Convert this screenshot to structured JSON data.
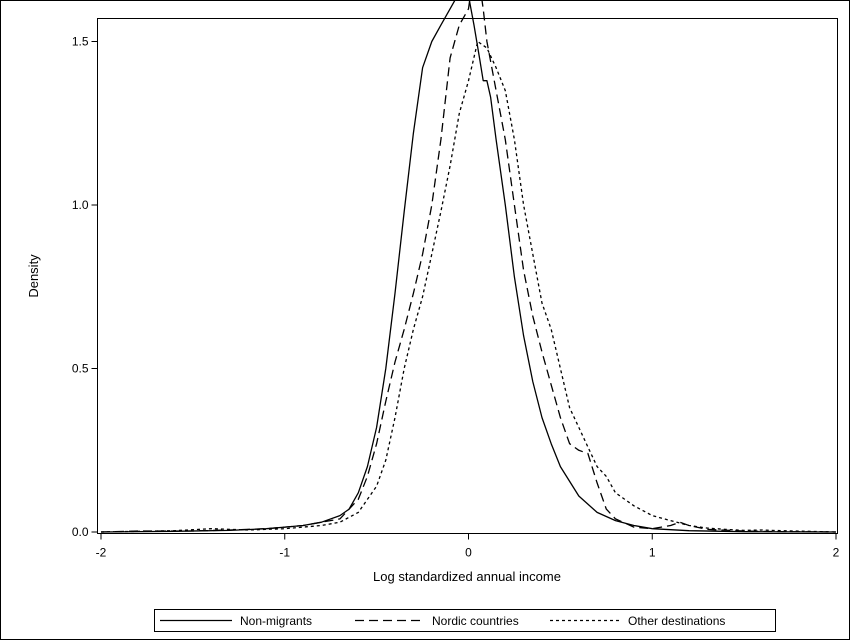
{
  "chart_data": {
    "type": "line",
    "title": "",
    "xlabel": "Log standardized annual income",
    "ylabel": "Density",
    "xlim": [
      -2,
      2
    ],
    "ylim": [
      0,
      1.7
    ],
    "x_ticks": [
      -2,
      -1,
      0,
      1,
      2
    ],
    "x_tick_labels": [
      "-2",
      "-1",
      "0",
      "1",
      "2"
    ],
    "y_ticks": [
      0,
      0.5,
      1.0,
      1.5
    ],
    "y_tick_labels": [
      "0.0",
      "0.5",
      "1.0",
      "1.5"
    ],
    "grid": false,
    "legend_position": "bottom",
    "series": [
      {
        "name": "Non-migrants",
        "style": "solid",
        "points": [
          [
            -2.0,
            0.0
          ],
          [
            -1.6,
            0.002
          ],
          [
            -1.3,
            0.005
          ],
          [
            -1.1,
            0.01
          ],
          [
            -1.0,
            0.015
          ],
          [
            -0.9,
            0.02
          ],
          [
            -0.8,
            0.03
          ],
          [
            -0.7,
            0.05
          ],
          [
            -0.65,
            0.07
          ],
          [
            -0.6,
            0.12
          ],
          [
            -0.55,
            0.2
          ],
          [
            -0.5,
            0.32
          ],
          [
            -0.45,
            0.5
          ],
          [
            -0.4,
            0.73
          ],
          [
            -0.35,
            0.98
          ],
          [
            -0.3,
            1.22
          ],
          [
            -0.25,
            1.42
          ],
          [
            -0.2,
            1.5
          ],
          [
            -0.15,
            1.55
          ],
          [
            -0.1,
            1.6
          ],
          [
            -0.05,
            1.65
          ],
          [
            -0.02,
            1.67
          ],
          [
            0.0,
            1.64
          ],
          [
            0.03,
            1.55
          ],
          [
            0.06,
            1.45
          ],
          [
            0.08,
            1.38
          ],
          [
            0.1,
            1.38
          ],
          [
            0.12,
            1.33
          ],
          [
            0.15,
            1.2
          ],
          [
            0.2,
            1.0
          ],
          [
            0.25,
            0.78
          ],
          [
            0.3,
            0.6
          ],
          [
            0.35,
            0.46
          ],
          [
            0.4,
            0.35
          ],
          [
            0.45,
            0.27
          ],
          [
            0.5,
            0.2
          ],
          [
            0.6,
            0.11
          ],
          [
            0.7,
            0.06
          ],
          [
            0.8,
            0.035
          ],
          [
            0.9,
            0.02
          ],
          [
            1.0,
            0.01
          ],
          [
            1.2,
            0.004
          ],
          [
            1.5,
            0.001
          ],
          [
            2.0,
            0.0
          ]
        ]
      },
      {
        "name": "Nordic countries",
        "style": "dashed",
        "points": [
          [
            -2.0,
            0.0
          ],
          [
            -1.8,
            0.003
          ],
          [
            -1.5,
            0.003
          ],
          [
            -1.3,
            0.006
          ],
          [
            -1.1,
            0.01
          ],
          [
            -1.0,
            0.015
          ],
          [
            -0.9,
            0.02
          ],
          [
            -0.8,
            0.03
          ],
          [
            -0.7,
            0.04
          ],
          [
            -0.6,
            0.1
          ],
          [
            -0.55,
            0.17
          ],
          [
            -0.5,
            0.27
          ],
          [
            -0.45,
            0.4
          ],
          [
            -0.4,
            0.52
          ],
          [
            -0.35,
            0.62
          ],
          [
            -0.3,
            0.73
          ],
          [
            -0.25,
            0.85
          ],
          [
            -0.2,
            1.0
          ],
          [
            -0.15,
            1.2
          ],
          [
            -0.1,
            1.45
          ],
          [
            -0.05,
            1.55
          ],
          [
            0.0,
            1.6
          ],
          [
            0.02,
            1.68
          ],
          [
            0.04,
            1.72
          ],
          [
            0.06,
            1.68
          ],
          [
            0.08,
            1.6
          ],
          [
            0.1,
            1.5
          ],
          [
            0.15,
            1.35
          ],
          [
            0.2,
            1.2
          ],
          [
            0.25,
            1.0
          ],
          [
            0.3,
            0.8
          ],
          [
            0.35,
            0.66
          ],
          [
            0.4,
            0.55
          ],
          [
            0.45,
            0.45
          ],
          [
            0.5,
            0.35
          ],
          [
            0.55,
            0.27
          ],
          [
            0.6,
            0.25
          ],
          [
            0.65,
            0.24
          ],
          [
            0.7,
            0.15
          ],
          [
            0.75,
            0.07
          ],
          [
            0.8,
            0.04
          ],
          [
            0.9,
            0.015
          ],
          [
            1.0,
            0.01
          ],
          [
            1.1,
            0.02
          ],
          [
            1.15,
            0.03
          ],
          [
            1.2,
            0.02
          ],
          [
            1.3,
            0.008
          ],
          [
            1.5,
            0.003
          ],
          [
            1.7,
            0.001
          ],
          [
            2.0,
            0.0
          ]
        ]
      },
      {
        "name": "Other destinations",
        "style": "dotted",
        "points": [
          [
            -2.0,
            0.0
          ],
          [
            -1.6,
            0.004
          ],
          [
            -1.4,
            0.01
          ],
          [
            -1.2,
            0.006
          ],
          [
            -1.0,
            0.01
          ],
          [
            -0.9,
            0.015
          ],
          [
            -0.8,
            0.02
          ],
          [
            -0.7,
            0.03
          ],
          [
            -0.6,
            0.06
          ],
          [
            -0.5,
            0.14
          ],
          [
            -0.45,
            0.22
          ],
          [
            -0.4,
            0.35
          ],
          [
            -0.35,
            0.5
          ],
          [
            -0.3,
            0.62
          ],
          [
            -0.25,
            0.72
          ],
          [
            -0.2,
            0.85
          ],
          [
            -0.15,
            0.98
          ],
          [
            -0.1,
            1.12
          ],
          [
            -0.05,
            1.28
          ],
          [
            0.0,
            1.38
          ],
          [
            0.05,
            1.5
          ],
          [
            0.1,
            1.48
          ],
          [
            0.15,
            1.42
          ],
          [
            0.2,
            1.35
          ],
          [
            0.25,
            1.2
          ],
          [
            0.3,
            1.0
          ],
          [
            0.35,
            0.85
          ],
          [
            0.4,
            0.7
          ],
          [
            0.45,
            0.62
          ],
          [
            0.5,
            0.5
          ],
          [
            0.55,
            0.38
          ],
          [
            0.6,
            0.32
          ],
          [
            0.65,
            0.26
          ],
          [
            0.7,
            0.2
          ],
          [
            0.75,
            0.17
          ],
          [
            0.8,
            0.12
          ],
          [
            0.9,
            0.08
          ],
          [
            1.0,
            0.05
          ],
          [
            1.1,
            0.035
          ],
          [
            1.2,
            0.02
          ],
          [
            1.3,
            0.012
          ],
          [
            1.4,
            0.008
          ],
          [
            1.5,
            0.005
          ],
          [
            1.6,
            0.006
          ],
          [
            1.7,
            0.004
          ],
          [
            2.0,
            0.0
          ]
        ]
      }
    ]
  }
}
